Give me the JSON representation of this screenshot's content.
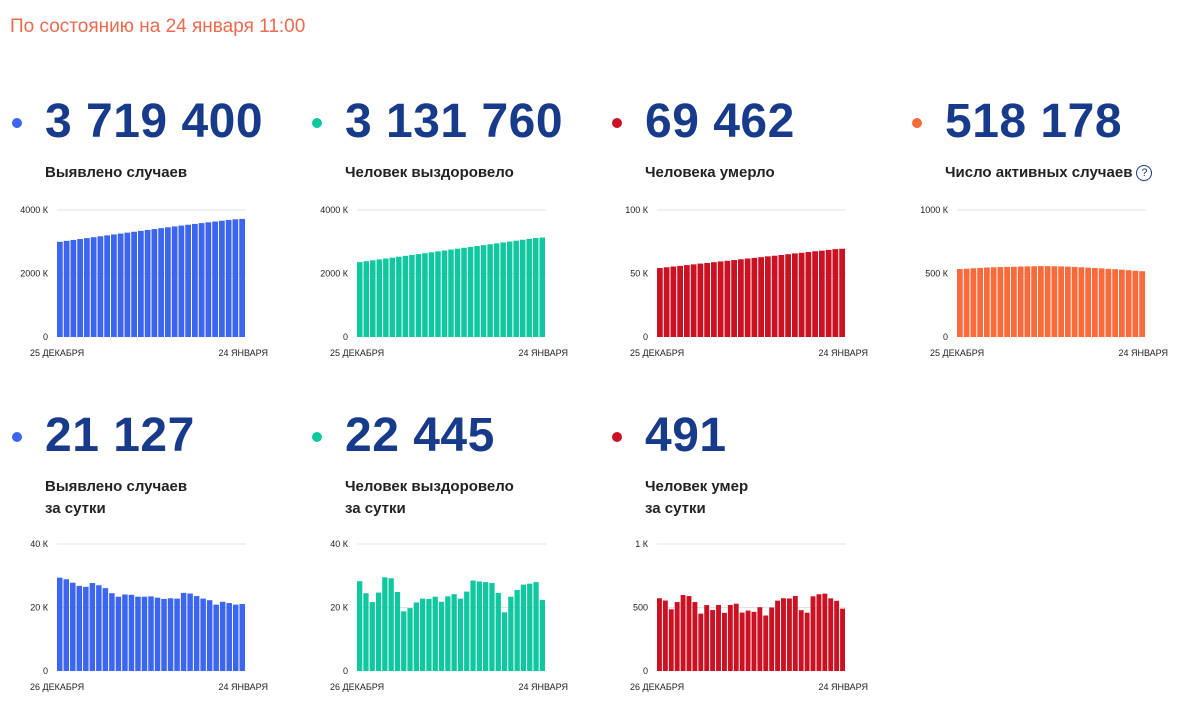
{
  "header": {
    "text": "По состоянию на 24 января 11:00"
  },
  "colors": {
    "blue": "#3c66f0",
    "green": "#10c8a0",
    "red": "#cc1122",
    "orange": "#fb6a3a"
  },
  "cards": [
    {
      "value": "3 719 400",
      "label": "Выявлено случаев",
      "color": "#3c66f0",
      "dot_icon": "bullet-dot",
      "chart_data": {
        "type": "bar",
        "x_start": "25 ДЕКАБРЯ",
        "x_end": "24 ЯНВАРЯ",
        "yticks": [
          "0",
          "2000 К",
          "4000 К"
        ],
        "ylim": [
          0,
          4000
        ],
        "values": [
          3000,
          3029,
          3058,
          3086,
          3115,
          3143,
          3172,
          3201,
          3230,
          3258,
          3287,
          3315,
          3343,
          3372,
          3400,
          3428,
          3456,
          3483,
          3510,
          3536,
          3562,
          3587,
          3612,
          3637,
          3662,
          3685,
          3707,
          3719
        ]
      }
    },
    {
      "value": "3 131 760",
      "label": "Человек выздоровело",
      "color": "#10c8a0",
      "dot_icon": "bullet-dot",
      "chart_data": {
        "type": "bar",
        "x_start": "25 ДЕКАБРЯ",
        "x_end": "24 ЯНВАРЯ",
        "yticks": [
          "0",
          "2000 К",
          "4000 К"
        ],
        "ylim": [
          0,
          4000
        ],
        "values": [
          2360,
          2388,
          2416,
          2444,
          2472,
          2500,
          2528,
          2556,
          2584,
          2612,
          2640,
          2668,
          2697,
          2725,
          2753,
          2781,
          2809,
          2837,
          2865,
          2893,
          2922,
          2950,
          2978,
          3006,
          3034,
          3062,
          3090,
          3118,
          3132
        ]
      }
    },
    {
      "value": "69 462",
      "label": "Человека умерло",
      "color": "#cc1122",
      "dot_icon": "bullet-dot",
      "chart_data": {
        "type": "bar",
        "x_start": "25 ДЕКАБРЯ",
        "x_end": "24 ЯНВАРЯ",
        "yticks": [
          "0",
          "50 К",
          "100 К"
        ],
        "ylim": [
          0,
          100
        ],
        "values": [
          54.3,
          54.9,
          55.5,
          56.0,
          56.6,
          57.2,
          57.8,
          58.3,
          58.9,
          59.5,
          60.0,
          60.6,
          61.2,
          61.8,
          62.3,
          62.9,
          63.5,
          64.0,
          64.6,
          65.2,
          65.8,
          66.3,
          66.9,
          67.5,
          68.0,
          68.6,
          69.2,
          69.5
        ]
      }
    },
    {
      "value": "518 178",
      "label": "Число активных случаев",
      "color": "#fb6a3a",
      "dot_icon": "bullet-dot",
      "info_icon": "?",
      "chart_data": {
        "type": "bar",
        "x_start": "25 ДЕКАБРЯ",
        "x_end": "24 ЯНВАРЯ",
        "yticks": [
          "0",
          "500 К",
          "1000 К"
        ],
        "ylim": [
          0,
          1000
        ],
        "values": [
          535,
          538,
          541,
          544,
          547,
          549,
          551,
          552,
          553,
          555,
          556,
          557,
          558,
          558,
          557,
          556,
          554,
          552,
          549,
          546,
          543,
          540,
          537,
          534,
          530,
          526,
          522,
          518
        ]
      }
    },
    {
      "value": "21 127",
      "label": "Выявлено случаев",
      "label2": "за сутки",
      "color": "#3c66f0",
      "dot_icon": "bullet-dot",
      "chart_data": {
        "type": "bar",
        "x_start": "26 ДЕКАБРЯ",
        "x_end": "24 ЯНВАРЯ",
        "yticks": [
          "0",
          "20 К",
          "40 К"
        ],
        "ylim": [
          0,
          40
        ],
        "values": [
          29.4,
          28.9,
          27.8,
          26.8,
          26.5,
          27.7,
          27.0,
          26.1,
          24.5,
          23.4,
          24.1,
          24.0,
          23.4,
          23.4,
          23.5,
          23.1,
          22.7,
          22.9,
          22.8,
          24.6,
          24.4,
          23.6,
          22.8,
          22.3,
          20.9,
          21.8,
          21.4,
          20.9,
          21.1
        ]
      }
    },
    {
      "value": "22 445",
      "label": "Человек выздоровело",
      "label2": "за сутки",
      "color": "#10c8a0",
      "dot_icon": "bullet-dot",
      "chart_data": {
        "type": "bar",
        "x_start": "26 ДЕКАБРЯ",
        "x_end": "24 ЯНВАРЯ",
        "yticks": [
          "0",
          "20 К",
          "40 К"
        ],
        "ylim": [
          0,
          40
        ],
        "values": [
          28.3,
          24.5,
          21.7,
          24.7,
          29.5,
          29.2,
          24.9,
          18.8,
          19.8,
          21.6,
          22.8,
          22.7,
          23.4,
          21.8,
          23.5,
          24.2,
          22.8,
          25.0,
          28.5,
          28.2,
          28.0,
          27.7,
          24.6,
          18.5,
          23.4,
          25.5,
          27.2,
          27.5,
          28.0,
          22.4
        ]
      }
    },
    {
      "value": "491",
      "label": "Человек умер",
      "label2": "за сутки",
      "color": "#cc1122",
      "dot_icon": "bullet-dot",
      "chart_data": {
        "type": "bar",
        "x_start": "26 ДЕКАБРЯ",
        "x_end": "24 ЯНВАРЯ",
        "yticks": [
          "0",
          "500",
          "1 К"
        ],
        "ylim": [
          0,
          1000
        ],
        "values": [
          573,
          555,
          486,
          543,
          598,
          590,
          543,
          452,
          519,
          480,
          520,
          458,
          520,
          530,
          460,
          476,
          466,
          502,
          437,
          500,
          554,
          573,
          571,
          591,
          479,
          459,
          588,
          604,
          609,
          572,
          553,
          491
        ]
      }
    }
  ]
}
